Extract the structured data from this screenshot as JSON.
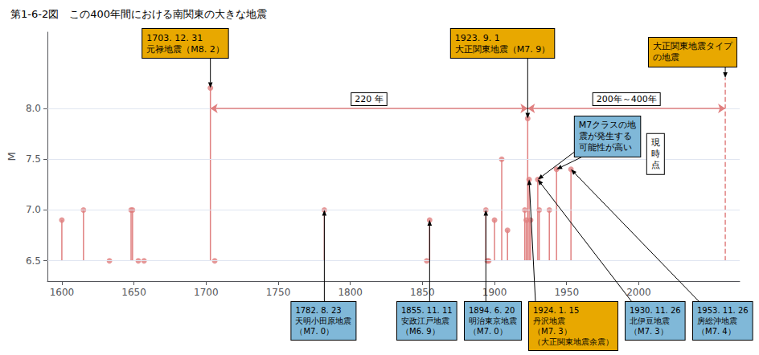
{
  "chart_data": {
    "type": "lollipop",
    "title": "第1-6-2図　この400年間における南関東の大きな地震",
    "ylabel": "M",
    "x": [
      1600,
      1615,
      1633,
      1648,
      1649,
      1653,
      1657,
      1703,
      1706,
      1782,
      1853,
      1855,
      1894,
      1895,
      1896,
      1900,
      1905,
      1909,
      1921,
      1922,
      1923,
      1924,
      1925,
      1930,
      1931,
      1938,
      1943,
      1953
    ],
    "values": [
      6.9,
      7.0,
      6.5,
      7.0,
      7.0,
      6.5,
      6.5,
      8.2,
      6.5,
      7.0,
      6.5,
      6.9,
      7.0,
      6.5,
      6.5,
      6.9,
      7.5,
      6.8,
      7.0,
      6.9,
      7.9,
      7.3,
      6.9,
      7.3,
      7.0,
      7.0,
      7.4,
      7.4
    ],
    "baseline": 6.5,
    "color": "#e08080",
    "xlim": [
      1590,
      2070
    ],
    "ylim": [
      6.3,
      8.75
    ],
    "xticks": [
      1600,
      1650,
      1700,
      1750,
      1800,
      1850,
      1900,
      1950,
      2000
    ],
    "yticks": [
      6.5,
      {
        "value": 7,
        "label": "7.0"
      },
      7.5,
      {
        "value": 8,
        "label": "8.0"
      }
    ],
    "grid": true,
    "spans": [
      {
        "text": "220 年",
        "x1": 1703,
        "x2": 1923,
        "y": 8.0
      },
      {
        "text": "200年～400年",
        "x1": 1923,
        "x2": 2060,
        "y": 8.0
      }
    ],
    "future": {
      "x": 2060,
      "top": 8.3,
      "text": "大正関東地震タイプ\nの地震",
      "color": "#e8a800",
      "line_style": "dashed"
    },
    "present": {
      "x": 2003,
      "text": "現\n時\n点"
    },
    "forecast": {
      "text": "M7クラスの地\n震が発生する\n可能性が高い",
      "color": "#80b8d8",
      "points": [
        {
          "x": 1930,
          "y": 7.3
        },
        {
          "x": 1943,
          "y": 7.4
        }
      ]
    },
    "annotations": [
      {
        "text": "1703. 12. 31\n元禄地震（M8. 2）",
        "x": 1703,
        "y": 8.2,
        "color": "#e8a800"
      },
      {
        "text": "1923. 9. 1\n大正関東地震（M7. 9）",
        "x": 1923,
        "y": 7.9,
        "color": "#e8a800"
      }
    ],
    "annotations_below": [
      {
        "text": "1782. 8. 23\n天明小田原地震\n（M7. 0）",
        "x": 1782,
        "y": 7.0,
        "color": "#80b8d8"
      },
      {
        "text": "1855. 11. 11\n安政江戸地震\n（M6. 9）",
        "x": 1855,
        "y": 6.9,
        "color": "#80b8d8"
      },
      {
        "text": "1894. 6. 20\n明治東京地震\n（M7. 0）",
        "x": 1894,
        "y": 7.0,
        "color": "#80b8d8"
      },
      {
        "text": "1924. 1. 15\n丹沢地震\n（M7. 3）\n（大正関東地震余震）",
        "x": 1924,
        "y": 7.3,
        "color": "#e8a800"
      },
      {
        "text": "1930. 11. 26\n北伊豆地震\n（M7. 3）",
        "x": 1930,
        "y": 7.3,
        "color": "#80b8d8"
      },
      {
        "text": "1953. 11. 26\n房総沖地震\n（M7. 4）",
        "x": 1953,
        "y": 7.4,
        "color": "#80b8d8"
      }
    ]
  }
}
